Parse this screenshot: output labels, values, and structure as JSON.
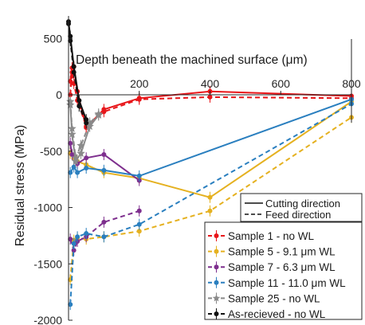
{
  "chart_data": {
    "type": "line",
    "title": "",
    "subtitle": "",
    "xlabel": "Depth beneath the machined surface (μm)",
    "ylabel": "Residual stress (MPa)",
    "xlim": [
      0,
      800
    ],
    "ylim": [
      -2000,
      700
    ],
    "xticks": [
      "200",
      "400",
      "600",
      "800"
    ],
    "xtick_values": [
      200,
      400,
      600,
      800
    ],
    "yticks": [
      "500",
      "0",
      "-500",
      "-1000",
      "-1500",
      "-2000"
    ],
    "ytick_values": [
      500,
      0,
      -500,
      -1000,
      -1500,
      -2000
    ],
    "grid": false,
    "legend_placement": "bottom-right",
    "linestyle_legend": [
      {
        "label": "Cutting direction",
        "dash": "solid"
      },
      {
        "label": "Feed direction",
        "dash": "dashed"
      }
    ],
    "series": [
      {
        "name": "Sample 1 - no WL",
        "color": "#e8161a",
        "marker": "dot",
        "style": "solid",
        "x": [
          5,
          10,
          15,
          25,
          50,
          100,
          200,
          400,
          800
        ],
        "y": [
          120,
          240,
          250,
          30,
          -290,
          -130,
          -30,
          30,
          -10
        ]
      },
      {
        "name": "Sample 1 - no WL",
        "color": "#e8161a",
        "marker": "dot",
        "style": "dashed",
        "legend": false,
        "x": [
          5,
          10,
          15,
          25,
          50,
          100,
          200,
          400,
          800
        ],
        "y": [
          0,
          200,
          100,
          -50,
          -280,
          -150,
          -40,
          -20,
          -30
        ]
      },
      {
        "name": "Sample 5 - 9.1 μm WL",
        "color": "#e5b120",
        "marker": "dot",
        "style": "solid",
        "x": [
          5,
          15,
          25,
          50,
          100,
          200,
          400,
          800
        ],
        "y": [
          -520,
          -560,
          -590,
          -620,
          -690,
          -740,
          -910,
          -60
        ]
      },
      {
        "name": "Sample 5 - 9.1 μm WL",
        "color": "#e5b120",
        "marker": "dot",
        "style": "dashed",
        "legend": false,
        "x": [
          5,
          15,
          25,
          50,
          100,
          200,
          400,
          800
        ],
        "y": [
          -1640,
          -1290,
          -1270,
          -1280,
          -1260,
          -1210,
          -1030,
          -200
        ]
      },
      {
        "name": "Sample 7 - 6.3 μm WL",
        "color": "#7e2f8e",
        "marker": "dot",
        "style": "solid",
        "x": [
          5,
          10,
          25,
          50,
          100,
          200
        ],
        "y": [
          -430,
          -530,
          -610,
          -560,
          -530,
          -760
        ]
      },
      {
        "name": "Sample 7 - 6.3 μm WL",
        "color": "#7e2f8e",
        "marker": "dot",
        "style": "dashed",
        "legend": false,
        "x": [
          5,
          15,
          25,
          50,
          100,
          200
        ],
        "y": [
          -1280,
          -1380,
          -1300,
          -1260,
          -1130,
          -1030
        ]
      },
      {
        "name": "Sample 11 - 11.0 μm WL",
        "color": "#2a7fbf",
        "marker": "dot",
        "style": "solid",
        "x": [
          5,
          15,
          25,
          50,
          100,
          200,
          800
        ],
        "y": [
          -690,
          -640,
          -690,
          -650,
          -670,
          -720,
          -40
        ]
      },
      {
        "name": "Sample 11 - 11.0 μm WL",
        "color": "#2a7fbf",
        "marker": "dot",
        "style": "dashed",
        "legend": false,
        "x": [
          5,
          15,
          25,
          50,
          100,
          200,
          800
        ],
        "y": [
          -1860,
          -1320,
          -1260,
          -1230,
          -1260,
          -1150,
          -80
        ]
      },
      {
        "name": "Sample 25 - no WL",
        "color": "#8a8a8a",
        "marker": "star",
        "style": "solid",
        "x": [
          5,
          10,
          20,
          35,
          60,
          85
        ],
        "y": [
          -90,
          -350,
          -590,
          -520,
          -280,
          -180
        ]
      },
      {
        "name": "Sample 25 - no WL",
        "color": "#8a8a8a",
        "marker": "star",
        "style": "dashed",
        "legend": false,
        "x": [
          5,
          10,
          20,
          35,
          60,
          85
        ],
        "y": [
          -60,
          -300,
          -560,
          -450,
          -250,
          -170
        ]
      },
      {
        "name": "As-recieved - no WL",
        "color": "#111111",
        "marker": "dot",
        "style": "solid",
        "x": [
          0,
          5,
          15,
          30,
          50
        ],
        "y": [
          650,
          520,
          250,
          -50,
          -220
        ]
      },
      {
        "name": "As-recieved - no WL",
        "color": "#111111",
        "marker": "dot",
        "style": "dashed",
        "legend": false,
        "x": [
          0,
          5,
          15,
          30,
          50
        ],
        "y": [
          630,
          480,
          200,
          -100,
          -250
        ]
      }
    ]
  }
}
